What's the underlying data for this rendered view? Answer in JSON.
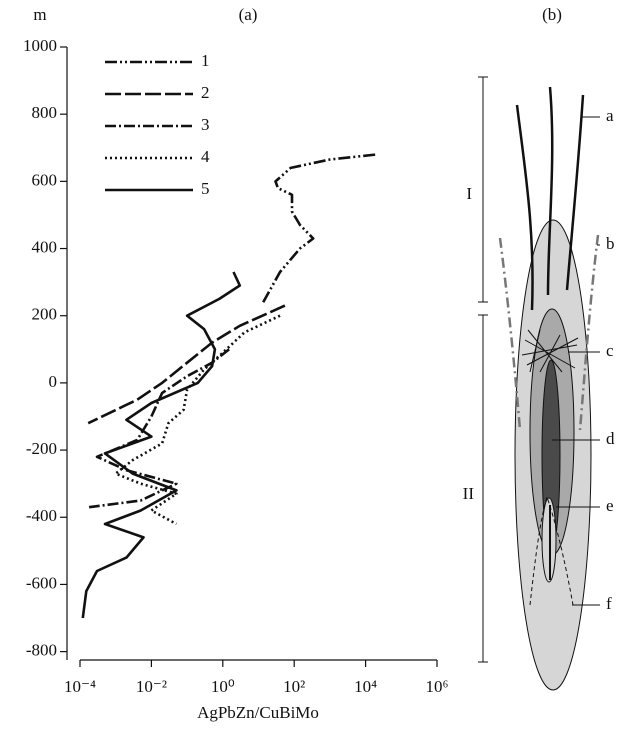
{
  "chart_data": {
    "type": "line",
    "title": "(a)",
    "ylabel": "m",
    "xlabel": "AgPbZn/CuBiMo",
    "xscale": "log",
    "xlim": [
      0.0001,
      1000000
    ],
    "xticks": [
      {
        "value": 0.0001,
        "label": "10⁻⁴"
      },
      {
        "value": 0.01,
        "label": "10⁻²"
      },
      {
        "value": 1,
        "label": "10⁰"
      },
      {
        "value": 100,
        "label": "10²"
      },
      {
        "value": 10000,
        "label": "10⁴"
      },
      {
        "value": 1000000,
        "label": "10⁶"
      }
    ],
    "ylim": [
      -825,
      1000
    ],
    "yticks": [
      -800,
      -600,
      -400,
      -200,
      0,
      200,
      400,
      600,
      800,
      1000
    ],
    "grid": false,
    "legend": "top-left",
    "series": [
      {
        "name": "1",
        "color": "#111111",
        "dash": "dash-dot-dot",
        "x": [
          13.5,
          40,
          145,
          340,
          145,
          87,
          87,
          35,
          30,
          80,
          1000,
          20000
        ],
        "values": [
          240,
          330,
          400,
          430,
          470,
          510,
          560,
          580,
          600,
          640,
          665,
          680
        ]
      },
      {
        "name": "2",
        "color": "#111111",
        "dash": "long-dash",
        "x": [
          55,
          3,
          0.5,
          0.1,
          0.02,
          0.004,
          0.00017
        ],
        "values": [
          230,
          170,
          120,
          60,
          0,
          -50,
          -120
        ]
      },
      {
        "name": "3",
        "color": "#111111",
        "dash": "dash-dot",
        "x": [
          1.5,
          0.5,
          0.1,
          0.02,
          0.01,
          0.004,
          0.0003,
          0.002,
          0.05,
          0.005,
          0.00018
        ],
        "values": [
          100,
          60,
          20,
          -30,
          -100,
          -170,
          -220,
          -260,
          -300,
          -350,
          -370
        ]
      },
      {
        "name": "4",
        "color": "#111111",
        "dash": "dot",
        "x": [
          40,
          4,
          1,
          0.3,
          0.1,
          0.08,
          0.03,
          0.02,
          0.003,
          0.001,
          0.005,
          0.05,
          0.01,
          0.05
        ],
        "values": [
          200,
          150,
          90,
          40,
          -20,
          -80,
          -120,
          -180,
          -230,
          -270,
          -300,
          -330,
          -380,
          -420
        ]
      },
      {
        "name": "5",
        "color": "#111111",
        "dash": "solid",
        "x": [
          2,
          3,
          0.8,
          0.1,
          0.3,
          0.6,
          0.5,
          0.2,
          0.01,
          0.002,
          0.01,
          0.0005,
          0.003,
          0.05,
          0.005,
          0.0005,
          0.006,
          0.002,
          0.0003,
          0.00015,
          0.00012
        ],
        "values": [
          330,
          290,
          250,
          200,
          160,
          100,
          50,
          0,
          -60,
          -110,
          -160,
          -210,
          -270,
          -320,
          -380,
          -420,
          -460,
          -520,
          -560,
          -620,
          -700
        ]
      }
    ]
  },
  "diagram": {
    "title": "(b)",
    "zones": [
      "I",
      "II"
    ],
    "labels": [
      "a",
      "b",
      "c",
      "d",
      "e",
      "f"
    ]
  }
}
